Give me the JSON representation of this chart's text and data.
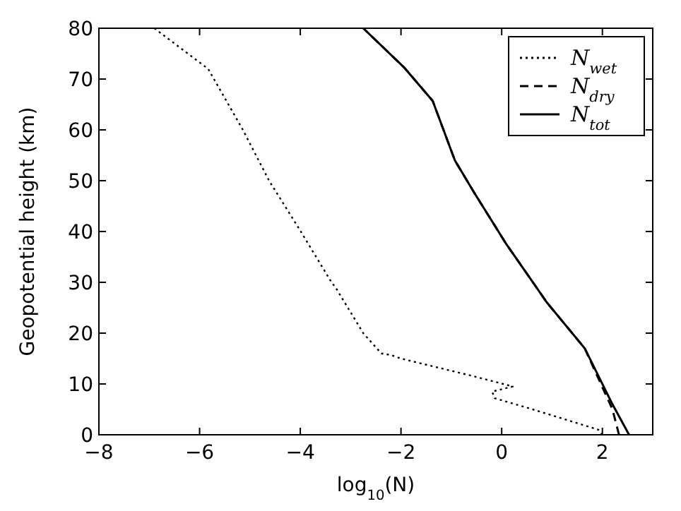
{
  "chart_data": {
    "type": "line",
    "xlabel": "log$_{10}$(N)",
    "ylabel": "Geopotential height (km)",
    "xlim": [
      -8,
      3
    ],
    "ylim": [
      0,
      80
    ],
    "xticks": [
      -8,
      -6,
      -4,
      -2,
      0,
      2
    ],
    "yticks": [
      0,
      10,
      20,
      30,
      40,
      50,
      60,
      70,
      80
    ],
    "legend": "top right",
    "grid": false,
    "series": [
      {
        "name": "N$_{wet}$",
        "color": "#000000",
        "line_style": "dotted",
        "x": [
          2.0,
          1.92,
          0.55,
          -0.14,
          -0.19,
          0.22,
          -0.55,
          -2.0,
          -2.2,
          -2.39,
          -2.75,
          -3.3,
          -3.38,
          -3.99,
          -4.62,
          -5.14,
          -5.83,
          -6.9
        ],
        "values": [
          0,
          1,
          5.2,
          7.2,
          8.5,
          9.5,
          11.5,
          15,
          15.7,
          16,
          20,
          29,
          30,
          40,
          50,
          60,
          72,
          80
        ]
      },
      {
        "name": "N$_{dry}$",
        "color": "#000000",
        "line_style": "dashed",
        "x": [
          2.33,
          2.2,
          1.65,
          0.9,
          0.08,
          -0.55,
          -0.93,
          -1.37,
          -1.93,
          -2.75
        ],
        "values": [
          0,
          5,
          17,
          26,
          37.7,
          47.7,
          54,
          65.7,
          72.2,
          80
        ]
      },
      {
        "name": "N$_{tot}$",
        "color": "#000000",
        "line_style": "solid",
        "x": [
          2.53,
          2.2,
          1.65,
          0.9,
          0.08,
          -0.55,
          -0.93,
          -1.37,
          -1.93,
          -2.75
        ],
        "values": [
          0,
          6,
          17,
          26,
          37.7,
          47.7,
          54,
          65.7,
          72.2,
          80
        ]
      }
    ]
  }
}
